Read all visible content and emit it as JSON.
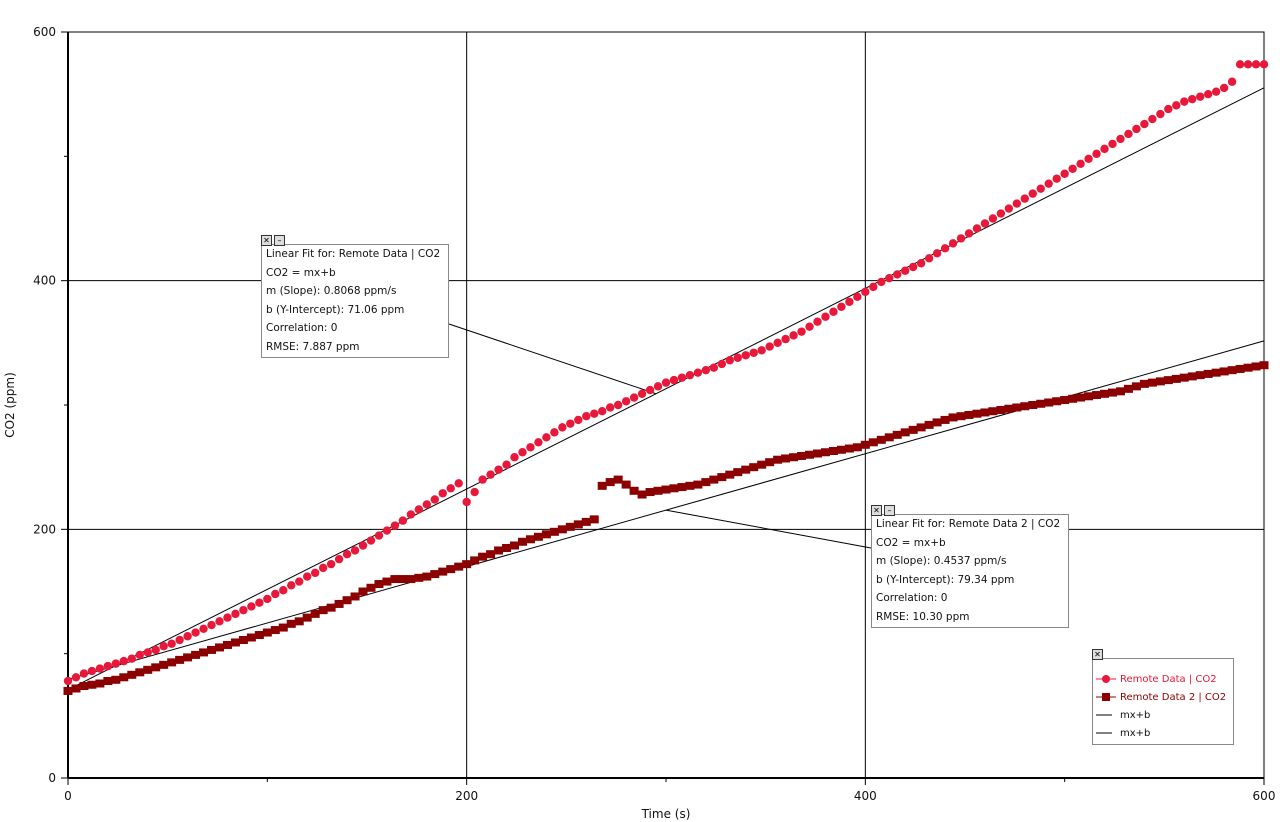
{
  "chart_data": {
    "type": "scatter",
    "xlabel": "Time (s)",
    "ylabel": "CO2 (ppm)",
    "xlim": [
      0,
      600
    ],
    "ylim": [
      0,
      600
    ],
    "xticks": [
      "0",
      "200",
      "400",
      "600"
    ],
    "yticks": [
      "0",
      "200",
      "400",
      "600"
    ],
    "grid": true,
    "legend_placement": "bottom-right",
    "series": [
      {
        "name": "Remote Data | CO2",
        "marker": "circle",
        "color": "#e8183a",
        "x": [
          0,
          4,
          8,
          12,
          16,
          20,
          24,
          28,
          32,
          36,
          40,
          44,
          48,
          52,
          56,
          60,
          64,
          68,
          72,
          76,
          80,
          84,
          88,
          92,
          96,
          100,
          104,
          108,
          112,
          116,
          120,
          124,
          128,
          132,
          136,
          140,
          144,
          148,
          152,
          156,
          160,
          164,
          168,
          172,
          176,
          180,
          184,
          188,
          192,
          196,
          200,
          204,
          208,
          212,
          216,
          220,
          224,
          228,
          232,
          236,
          240,
          244,
          248,
          252,
          256,
          260,
          264,
          268,
          272,
          276,
          280,
          284,
          288,
          292,
          296,
          300,
          304,
          308,
          312,
          316,
          320,
          324,
          328,
          332,
          336,
          340,
          344,
          348,
          352,
          356,
          360,
          364,
          368,
          372,
          376,
          380,
          384,
          388,
          392,
          396,
          400,
          404,
          408,
          412,
          416,
          420,
          424,
          428,
          432,
          436,
          440,
          444,
          448,
          452,
          456,
          460,
          464,
          468,
          472,
          476,
          480,
          484,
          488,
          492,
          496,
          500,
          504,
          508,
          512,
          516,
          520,
          524,
          528,
          532,
          536,
          540,
          544,
          548,
          552,
          556,
          560,
          564,
          568,
          572,
          576,
          580,
          584,
          588,
          592,
          596,
          600
        ],
        "y": [
          78,
          81,
          84,
          86,
          88,
          90,
          92,
          94,
          96,
          99,
          101,
          103,
          106,
          108,
          111,
          114,
          117,
          120,
          123,
          126,
          129,
          132,
          135,
          138,
          141,
          144,
          148,
          151,
          155,
          158,
          162,
          165,
          169,
          172,
          176,
          180,
          183,
          187,
          191,
          195,
          199,
          203,
          207,
          212,
          216,
          220,
          224,
          229,
          233,
          237,
          222,
          230,
          240,
          244,
          248,
          252,
          258,
          262,
          266,
          270,
          274,
          278,
          282,
          285,
          288,
          291,
          293,
          295,
          298,
          300,
          303,
          306,
          309,
          312,
          315,
          318,
          320,
          322,
          324,
          326,
          328,
          330,
          333,
          336,
          338,
          340,
          342,
          344,
          347,
          350,
          353,
          356,
          359,
          363,
          367,
          371,
          375,
          379,
          383,
          387,
          391,
          395,
          399,
          402,
          405,
          408,
          411,
          414,
          418,
          422,
          426,
          430,
          434,
          438,
          442,
          446,
          450,
          454,
          458,
          462,
          466,
          470,
          474,
          478,
          482,
          486,
          490,
          494,
          498,
          502,
          506,
          510,
          514,
          518,
          522,
          526,
          530,
          534,
          538,
          541,
          544,
          546,
          548,
          550,
          552,
          555,
          560,
          574,
          574,
          574,
          574
        ],
        "fit": {
          "m": 0.8068,
          "b": 71.06
        }
      },
      {
        "name": "Remote Data 2 | CO2",
        "marker": "square",
        "color": "#8b0000",
        "x": [
          0,
          4,
          8,
          12,
          16,
          20,
          24,
          28,
          32,
          36,
          40,
          44,
          48,
          52,
          56,
          60,
          64,
          68,
          72,
          76,
          80,
          84,
          88,
          92,
          96,
          100,
          104,
          108,
          112,
          116,
          120,
          124,
          128,
          132,
          136,
          140,
          144,
          148,
          152,
          156,
          160,
          164,
          168,
          172,
          176,
          180,
          184,
          188,
          192,
          196,
          200,
          204,
          208,
          212,
          216,
          220,
          224,
          228,
          232,
          236,
          240,
          244,
          248,
          252,
          256,
          260,
          264,
          268,
          272,
          276,
          280,
          284,
          288,
          292,
          296,
          300,
          304,
          308,
          312,
          316,
          320,
          324,
          328,
          332,
          336,
          340,
          344,
          348,
          352,
          356,
          360,
          364,
          368,
          372,
          376,
          380,
          384,
          388,
          392,
          396,
          400,
          404,
          408,
          412,
          416,
          420,
          424,
          428,
          432,
          436,
          440,
          444,
          448,
          452,
          456,
          460,
          464,
          468,
          472,
          476,
          480,
          484,
          488,
          492,
          496,
          500,
          504,
          508,
          512,
          516,
          520,
          524,
          528,
          532,
          536,
          540,
          544,
          548,
          552,
          556,
          560,
          564,
          568,
          572,
          576,
          580,
          584,
          588,
          592,
          596,
          600
        ],
        "y": [
          70,
          72,
          74,
          75,
          76,
          78,
          79,
          81,
          83,
          85,
          87,
          89,
          91,
          93,
          95,
          97,
          99,
          101,
          103,
          105,
          107,
          109,
          111,
          113,
          115,
          117,
          119,
          121,
          124,
          126,
          129,
          132,
          135,
          137,
          140,
          143,
          146,
          150,
          153,
          156,
          158,
          160,
          160,
          160,
          161,
          162,
          164,
          166,
          168,
          170,
          172,
          175,
          178,
          180,
          183,
          185,
          187,
          190,
          192,
          194,
          196,
          198,
          200,
          202,
          204,
          206,
          208,
          235,
          238,
          240,
          236,
          231,
          228,
          230,
          231,
          232,
          233,
          234,
          235,
          236,
          238,
          240,
          242,
          244,
          246,
          248,
          250,
          252,
          254,
          256,
          257,
          258,
          259,
          260,
          261,
          262,
          263,
          264,
          265,
          266,
          268,
          270,
          272,
          274,
          276,
          278,
          280,
          282,
          284,
          286,
          288,
          290,
          291,
          292,
          293,
          294,
          295,
          296,
          297,
          298,
          299,
          300,
          301,
          302,
          303,
          304,
          305,
          306,
          307,
          308,
          309,
          310,
          311,
          313,
          315,
          317,
          318,
          319,
          320,
          321,
          322,
          323,
          324,
          325,
          326,
          327,
          328,
          329,
          330,
          331,
          332
        ],
        "fit": {
          "m": 0.4537,
          "b": 79.34
        }
      }
    ],
    "fit_lines": [
      {
        "name": "mx+b",
        "color": "#000000"
      },
      {
        "name": "mx+b",
        "color": "#000000"
      }
    ]
  },
  "fit_box_1": {
    "lines": [
      "Linear Fit for: Remote Data | CO2",
      "CO2 = mx+b",
      "m (Slope): 0.8068 ppm/s",
      "b (Y-Intercept): 71.06 ppm",
      "Correlation: 0",
      "RMSE: 7.887 ppm"
    ]
  },
  "fit_box_2": {
    "lines": [
      "Linear Fit for: Remote Data 2 | CO2",
      "CO2 = mx+b",
      "m (Slope): 0.4537 ppm/s",
      "b (Y-Intercept): 79.34 ppm",
      "Correlation: 0",
      "RMSE: 10.30 ppm"
    ]
  },
  "legend": {
    "items": [
      "Remote Data | CO2",
      "Remote Data 2 | CO2",
      "mx+b",
      "mx+b"
    ]
  }
}
